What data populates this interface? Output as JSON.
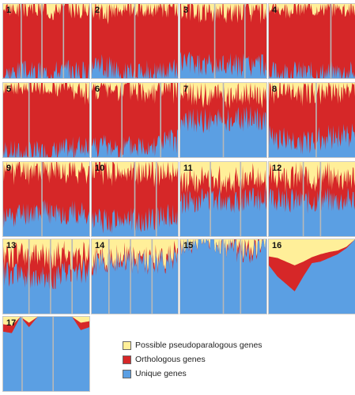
{
  "colors": {
    "pseudoparalogous": "#ffef99",
    "orthologous": "#d62728",
    "unique": "#5b9fe3",
    "separator": "#b8b8b8"
  },
  "legend": {
    "items": [
      {
        "label": "Possible pseudoparalogous genes",
        "color": "#ffef99"
      },
      {
        "label": "Orthologous genes",
        "color": "#d62728"
      },
      {
        "label": "Unique genes",
        "color": "#5b9fe3"
      }
    ]
  },
  "chart_data": {
    "type": "area",
    "series_order": [
      "Unique genes",
      "Orthologous genes",
      "Possible pseudoparalogous genes"
    ],
    "ylim": [
      0,
      1
    ],
    "panels": [
      {
        "label": "1",
        "separators": [
          0.21,
          0.45,
          0.7
        ],
        "x": [
          0,
          0.2,
          0.4,
          0.6,
          0.8,
          1
        ],
        "unique": [
          0.05,
          0.08,
          0.06,
          0.1,
          0.07,
          0.08
        ],
        "orthologous": [
          0.88,
          0.86,
          0.87,
          0.84,
          0.86,
          0.85
        ]
      },
      {
        "label": "2",
        "separators": [
          0.5
        ],
        "x": [
          0,
          0.2,
          0.4,
          0.6,
          0.8,
          1
        ],
        "unique": [
          0.2,
          0.15,
          0.05,
          0.08,
          0.04,
          0.1
        ],
        "orthologous": [
          0.72,
          0.78,
          0.88,
          0.85,
          0.88,
          0.82
        ]
      },
      {
        "label": "3",
        "separators": [
          0.4,
          0.75
        ],
        "x": [
          0,
          0.2,
          0.4,
          0.6,
          0.8,
          1
        ],
        "unique": [
          0.22,
          0.18,
          0.15,
          0.2,
          0.16,
          0.18
        ],
        "orthologous": [
          0.68,
          0.7,
          0.75,
          0.7,
          0.74,
          0.72
        ]
      },
      {
        "label": "4",
        "separators": [
          0.72
        ],
        "x": [
          0,
          0.2,
          0.4,
          0.6,
          0.8,
          1
        ],
        "unique": [
          0.05,
          0.08,
          0.06,
          0.05,
          0.07,
          0.06
        ],
        "orthologous": [
          0.88,
          0.86,
          0.88,
          0.89,
          0.87,
          0.88
        ]
      },
      {
        "label": "5",
        "separators": [
          0.3
        ],
        "x": [
          0,
          0.2,
          0.4,
          0.6,
          0.8,
          1
        ],
        "unique": [
          0.08,
          0.04,
          0.05,
          0.06,
          0.1,
          0.2
        ],
        "orthologous": [
          0.86,
          0.9,
          0.9,
          0.88,
          0.82,
          0.72
        ]
      },
      {
        "label": "6",
        "separators": [
          0.35,
          0.8
        ],
        "x": [
          0,
          0.2,
          0.4,
          0.6,
          0.8,
          1
        ],
        "unique": [
          0.18,
          0.14,
          0.12,
          0.16,
          0.2,
          0.22
        ],
        "orthologous": [
          0.74,
          0.78,
          0.8,
          0.76,
          0.72,
          0.7
        ]
      },
      {
        "label": "7",
        "separators": [
          0.5
        ],
        "x": [
          0,
          0.2,
          0.4,
          0.6,
          0.8,
          1
        ],
        "unique": [
          0.45,
          0.5,
          0.48,
          0.5,
          0.52,
          0.5
        ],
        "orthologous": [
          0.38,
          0.35,
          0.36,
          0.34,
          0.32,
          0.34
        ]
      },
      {
        "label": "8",
        "separators": [
          0.55
        ],
        "x": [
          0,
          0.2,
          0.4,
          0.6,
          0.8,
          1
        ],
        "unique": [
          0.3,
          0.22,
          0.2,
          0.25,
          0.28,
          0.3
        ],
        "orthologous": [
          0.6,
          0.68,
          0.7,
          0.66,
          0.62,
          0.6
        ]
      },
      {
        "label": "9",
        "separators": [
          0.45
        ],
        "x": [
          0,
          0.2,
          0.4,
          0.6,
          0.8,
          1
        ],
        "unique": [
          0.25,
          0.3,
          0.35,
          0.3,
          0.32,
          0.3
        ],
        "orthologous": [
          0.66,
          0.6,
          0.55,
          0.6,
          0.58,
          0.6
        ]
      },
      {
        "label": "10",
        "separators": [
          0.5,
          0.75
        ],
        "x": [
          0,
          0.2,
          0.4,
          0.6,
          0.8,
          1
        ],
        "unique": [
          0.22,
          0.2,
          0.25,
          0.2,
          0.28,
          0.25
        ],
        "orthologous": [
          0.66,
          0.7,
          0.62,
          0.68,
          0.6,
          0.62
        ]
      },
      {
        "label": "11",
        "separators": [
          0.35,
          0.7
        ],
        "x": [
          0,
          0.2,
          0.4,
          0.6,
          0.8,
          1
        ],
        "unique": [
          0.45,
          0.5,
          0.52,
          0.48,
          0.5,
          0.52
        ],
        "orthologous": [
          0.3,
          0.28,
          0.25,
          0.3,
          0.28,
          0.24
        ]
      },
      {
        "label": "12",
        "separators": [
          0.4,
          0.6
        ],
        "x": [
          0,
          0.2,
          0.4,
          0.6,
          0.8,
          1
        ],
        "unique": [
          0.48,
          0.5,
          0.46,
          0.5,
          0.48,
          0.5
        ],
        "orthologous": [
          0.32,
          0.3,
          0.34,
          0.3,
          0.32,
          0.3
        ]
      },
      {
        "label": "13",
        "separators": [
          0.3,
          0.55,
          0.8
        ],
        "x": [
          0,
          0.2,
          0.4,
          0.6,
          0.8,
          1
        ],
        "unique": [
          0.55,
          0.5,
          0.45,
          0.5,
          0.6,
          0.55
        ],
        "orthologous": [
          0.25,
          0.3,
          0.32,
          0.28,
          0.2,
          0.22
        ]
      },
      {
        "label": "14",
        "separators": [
          0.2,
          0.45,
          0.7
        ],
        "x": [
          0,
          0.2,
          0.4,
          0.6,
          0.8,
          1
        ],
        "unique": [
          0.65,
          0.7,
          0.72,
          0.68,
          0.7,
          0.72
        ],
        "orthologous": [
          0.06,
          0.05,
          0.08,
          0.06,
          0.04,
          0.05
        ]
      },
      {
        "label": "15",
        "separators": [
          0.5,
          0.7
        ],
        "x": [
          0,
          0.2,
          0.4,
          0.6,
          0.8,
          1
        ],
        "unique": [
          0.9,
          1,
          1,
          0.88,
          0.8,
          1
        ],
        "orthologous": [
          0.02,
          0,
          0,
          0.04,
          0.1,
          0
        ]
      },
      {
        "label": "16",
        "separators": [],
        "x": [
          0,
          0.1,
          0.2,
          0.3,
          0.4,
          0.5,
          0.6,
          0.7,
          0.8,
          0.9,
          1
        ],
        "unique": [
          0.65,
          0.5,
          0.4,
          0.3,
          0.5,
          0.68,
          0.7,
          0.75,
          0.8,
          0.88,
          1
        ],
        "orthologous": [
          0.12,
          0.25,
          0.3,
          0.35,
          0.2,
          0.08,
          0.1,
          0.08,
          0.05,
          0.02,
          0
        ]
      },
      {
        "label": "17",
        "separators": [
          0.22,
          0.58
        ],
        "x": [
          0,
          0.1,
          0.2,
          0.3,
          0.4,
          0.5,
          0.6,
          0.7,
          0.8,
          0.9,
          1
        ],
        "unique": [
          0.8,
          0.78,
          1,
          0.86,
          1,
          1,
          1,
          1,
          1,
          0.82,
          0.86
        ],
        "orthologous": [
          0.1,
          0.1,
          0,
          0.06,
          0,
          0,
          0,
          0,
          0,
          0.1,
          0.08
        ]
      }
    ]
  }
}
